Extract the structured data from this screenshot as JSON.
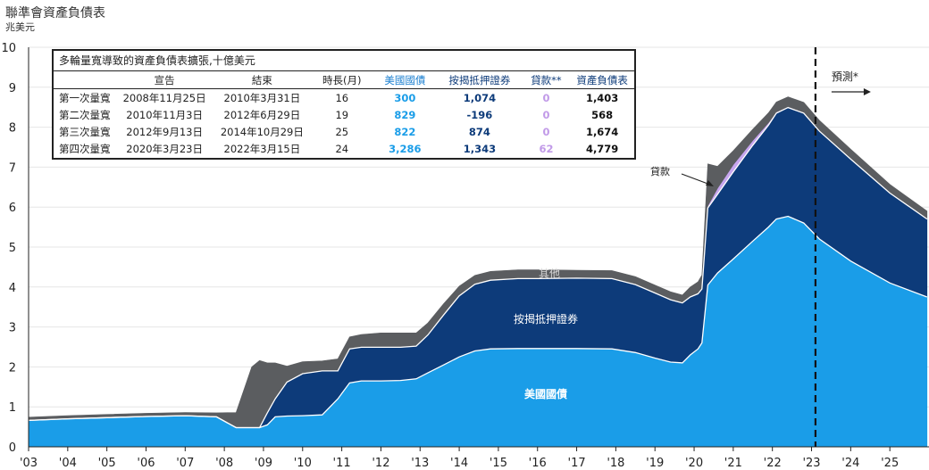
{
  "title": "聯準會資產負債表",
  "unit": "兆美元",
  "table": {
    "caption": "多輪量寬導致的資產負債表擴張,十億美元",
    "headers": [
      "",
      "宣告",
      "結束",
      "時長(月)",
      "美國國債",
      "按揭抵押證券",
      "貸款**",
      "資產負債表"
    ],
    "rows": [
      {
        "name": "第一次量寬",
        "announce": "2008年11月25日",
        "end": "2010年3月31日",
        "months": "16",
        "tsy": "300",
        "mbs": "1,074",
        "loans": "0",
        "total": "1,403"
      },
      {
        "name": "第二次量寬",
        "announce": "2010年11月3日",
        "end": "2012年6月29日",
        "months": "19",
        "tsy": "829",
        "mbs": "-196",
        "loans": "0",
        "total": "568"
      },
      {
        "name": "第三次量寬",
        "announce": "2012年9月13日",
        "end": "2014年10月29日",
        "months": "25",
        "tsy": "822",
        "mbs": "874",
        "loans": "0",
        "total": "1,674"
      },
      {
        "name": "第四次量寬",
        "announce": "2020年3月23日",
        "end": "2022年3月15日",
        "months": "24",
        "tsy": "3,286",
        "mbs": "1,343",
        "loans": "62",
        "total": "4,779"
      }
    ]
  },
  "colors": {
    "treasuries": "#1a9de8",
    "mbs": "#0d3b7a",
    "loans": "#c7a6ef",
    "other": "#5b5d60",
    "forecast_line": "#111111"
  },
  "chart_data": {
    "type": "area",
    "stacked": true,
    "xlim": [
      2003,
      2026
    ],
    "ylim": [
      0,
      10
    ],
    "y_ticks": [
      0,
      1,
      2,
      3,
      4,
      5,
      6,
      7,
      8,
      9,
      10
    ],
    "x_tick_labels": [
      "'03",
      "'04",
      "'05",
      "'06",
      "'07",
      "'08",
      "'09",
      "'10",
      "'11",
      "'12",
      "'13",
      "'14",
      "'15",
      "'16",
      "'17",
      "'18",
      "'19",
      "'20",
      "'21",
      "'22",
      "'23",
      "'24",
      "'25"
    ],
    "x": [
      2003.0,
      2004.0,
      2005.0,
      2006.0,
      2007.0,
      2007.8,
      2008.3,
      2008.7,
      2008.9,
      2009.1,
      2009.3,
      2009.6,
      2010.0,
      2010.5,
      2010.9,
      2011.2,
      2011.5,
      2012.0,
      2012.5,
      2012.9,
      2013.2,
      2013.6,
      2014.0,
      2014.4,
      2014.8,
      2015.5,
      2016.0,
      2017.0,
      2017.9,
      2018.5,
      2019.0,
      2019.4,
      2019.7,
      2019.9,
      2020.1,
      2020.2,
      2020.35,
      2020.6,
      2021.0,
      2021.5,
      2021.9,
      2022.1,
      2022.4,
      2022.8,
      2023.2,
      2024.0,
      2025.0,
      2025.95
    ],
    "series": [
      {
        "name": "美國國債",
        "values": [
          0.66,
          0.7,
          0.73,
          0.76,
          0.78,
          0.75,
          0.48,
          0.48,
          0.48,
          0.55,
          0.75,
          0.77,
          0.78,
          0.8,
          1.2,
          1.6,
          1.65,
          1.65,
          1.66,
          1.7,
          1.85,
          2.05,
          2.25,
          2.4,
          2.45,
          2.46,
          2.46,
          2.46,
          2.45,
          2.36,
          2.22,
          2.12,
          2.1,
          2.3,
          2.45,
          2.6,
          4.05,
          4.35,
          4.7,
          5.15,
          5.5,
          5.7,
          5.77,
          5.6,
          5.2,
          4.65,
          4.1,
          3.75
        ]
      },
      {
        "name": "按揭抵押證券",
        "values": [
          0,
          0,
          0,
          0,
          0,
          0,
          0,
          0,
          0,
          0.3,
          0.45,
          0.85,
          1.05,
          1.1,
          0.7,
          0.85,
          0.84,
          0.84,
          0.83,
          0.82,
          0.95,
          1.25,
          1.53,
          1.67,
          1.72,
          1.75,
          1.75,
          1.76,
          1.76,
          1.7,
          1.63,
          1.56,
          1.5,
          1.45,
          1.38,
          1.35,
          1.93,
          1.97,
          2.18,
          2.4,
          2.55,
          2.65,
          2.72,
          2.75,
          2.7,
          2.55,
          2.25,
          1.95
        ]
      },
      {
        "name": "貸款",
        "values": [
          0,
          0,
          0,
          0,
          0,
          0,
          0,
          0,
          0,
          0,
          0,
          0,
          0,
          0,
          0,
          0,
          0,
          0,
          0,
          0,
          0,
          0,
          0,
          0,
          0,
          0,
          0,
          0,
          0,
          0,
          0,
          0,
          0,
          0,
          0,
          0,
          0.05,
          0.15,
          0.18,
          0.12,
          0.06,
          0.03,
          0.02,
          0.02,
          0.02,
          0.02,
          0.02,
          0.02
        ]
      },
      {
        "name": "其他",
        "values": [
          0.08,
          0.08,
          0.08,
          0.08,
          0.08,
          0.1,
          0.38,
          1.52,
          1.68,
          1.25,
          0.9,
          0.4,
          0.3,
          0.25,
          0.3,
          0.3,
          0.32,
          0.36,
          0.36,
          0.33,
          0.3,
          0.28,
          0.24,
          0.22,
          0.22,
          0.22,
          0.22,
          0.2,
          0.2,
          0.2,
          0.2,
          0.2,
          0.2,
          0.25,
          0.3,
          0.35,
          1.05,
          0.55,
          0.35,
          0.28,
          0.25,
          0.25,
          0.25,
          0.25,
          0.25,
          0.23,
          0.2,
          0.18
        ]
      }
    ],
    "forecast_start_x": 2023.1,
    "annotations": {
      "forecast": "預測*",
      "loans_callout": "貸款",
      "label_other": "其他",
      "label_mbs": "按揭抵押證券",
      "label_tsy": "美國國債"
    }
  }
}
